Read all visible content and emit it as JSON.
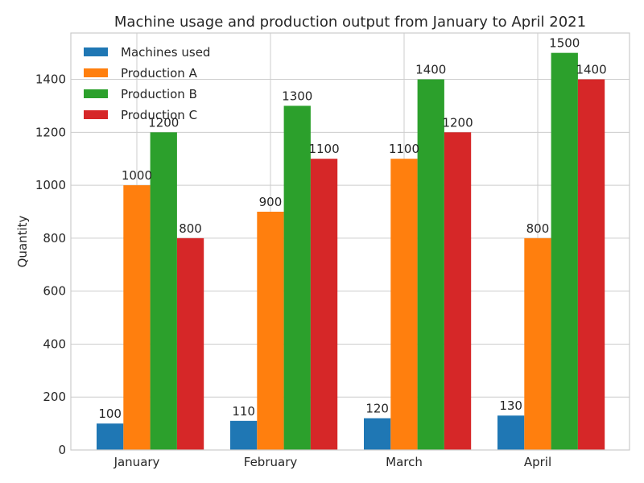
{
  "chart_data": {
    "type": "bar",
    "title": "Machine usage and production output from January to April 2021",
    "xlabel": "",
    "ylabel": "Quantity",
    "categories": [
      "January",
      "February",
      "March",
      "April"
    ],
    "ylim": [
      0,
      1575
    ],
    "yticks": [
      0,
      200,
      400,
      600,
      800,
      1000,
      1200,
      1400
    ],
    "grid": true,
    "legend_position": "top-left",
    "series": [
      {
        "name": "Machines used",
        "color": "#1f77b4",
        "values": [
          100,
          110,
          120,
          130
        ]
      },
      {
        "name": "Production A",
        "color": "#ff7f0e",
        "values": [
          1000,
          900,
          1100,
          800
        ]
      },
      {
        "name": "Production B",
        "color": "#2ca02c",
        "values": [
          1200,
          1300,
          1400,
          1500
        ]
      },
      {
        "name": "Production C",
        "color": "#d62728",
        "values": [
          800,
          1100,
          1200,
          1400
        ]
      }
    ]
  }
}
